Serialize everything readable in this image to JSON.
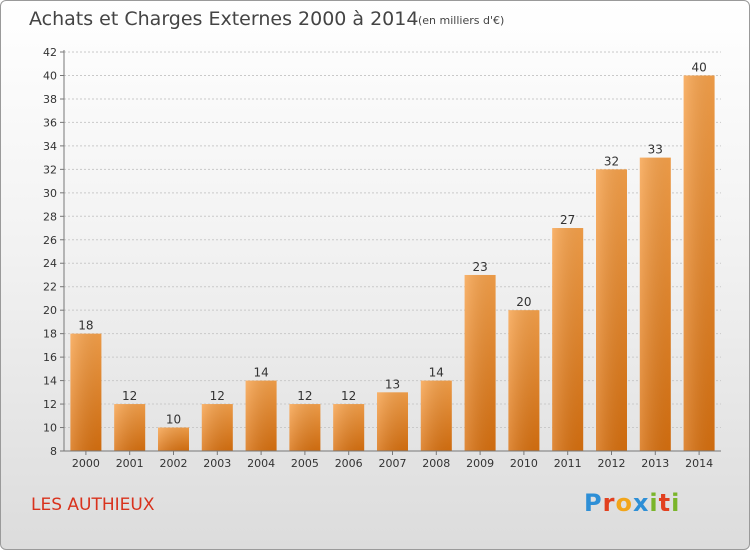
{
  "header": {
    "title": "Achats et Charges Externes 2000 à 2014",
    "subtitle": "(en milliers d'€)"
  },
  "footer": {
    "town": "LES AUTHIEUX",
    "logo_letters": [
      {
        "ch": "P",
        "color": "#2e8fd6"
      },
      {
        "ch": "r",
        "color": "#e2401f"
      },
      {
        "ch": "o",
        "color": "#f2a51a"
      },
      {
        "ch": "x",
        "color": "#2e8fd6"
      },
      {
        "ch": "i",
        "color": "#7ab52a"
      },
      {
        "ch": "t",
        "color": "#e2401f"
      },
      {
        "ch": "i",
        "color": "#7ab52a"
      }
    ]
  },
  "chart_data": {
    "type": "bar",
    "categories": [
      "2000",
      "2001",
      "2002",
      "2003",
      "2004",
      "2005",
      "2006",
      "2007",
      "2008",
      "2009",
      "2010",
      "2011",
      "2012",
      "2013",
      "2014"
    ],
    "values": [
      18,
      12,
      10,
      12,
      14,
      12,
      12,
      13,
      14,
      23,
      20,
      27,
      32,
      33,
      40
    ],
    "ylim": [
      8,
      42
    ],
    "yticks": [
      8,
      10,
      12,
      14,
      16,
      18,
      20,
      22,
      24,
      26,
      28,
      30,
      32,
      34,
      36,
      38,
      40,
      42
    ],
    "grid": true,
    "bar_color": "#f08a24"
  }
}
